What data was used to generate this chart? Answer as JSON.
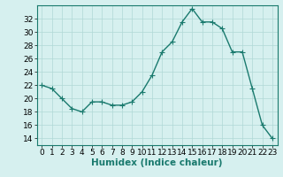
{
  "x": [
    0,
    1,
    2,
    3,
    4,
    5,
    6,
    7,
    8,
    9,
    10,
    11,
    12,
    13,
    14,
    15,
    16,
    17,
    18,
    19,
    20,
    21,
    22,
    23
  ],
  "y": [
    22,
    21.5,
    20,
    18.5,
    18,
    19.5,
    19.5,
    19,
    19,
    19.5,
    21,
    23.5,
    27,
    28.5,
    31.5,
    33.5,
    31.5,
    31.5,
    30.5,
    27,
    27,
    21.5,
    16,
    14
  ],
  "line_color": "#1a7a6e",
  "marker_color": "#1a7a6e",
  "bg_color": "#d6f0ef",
  "grid_color": "#b0d8d6",
  "xlabel": "Humidex (Indice chaleur)",
  "ylabel": "",
  "ylim": [
    13,
    34
  ],
  "yticks": [
    14,
    16,
    18,
    20,
    22,
    24,
    26,
    28,
    30,
    32
  ],
  "xlim": [
    -0.5,
    23.5
  ],
  "xticks": [
    0,
    1,
    2,
    3,
    4,
    5,
    6,
    7,
    8,
    9,
    10,
    11,
    12,
    13,
    14,
    15,
    16,
    17,
    18,
    19,
    20,
    21,
    22,
    23
  ],
  "xlabel_fontsize": 7.5,
  "tick_fontsize": 6.5,
  "line_width": 1.0,
  "marker_size": 2.2
}
